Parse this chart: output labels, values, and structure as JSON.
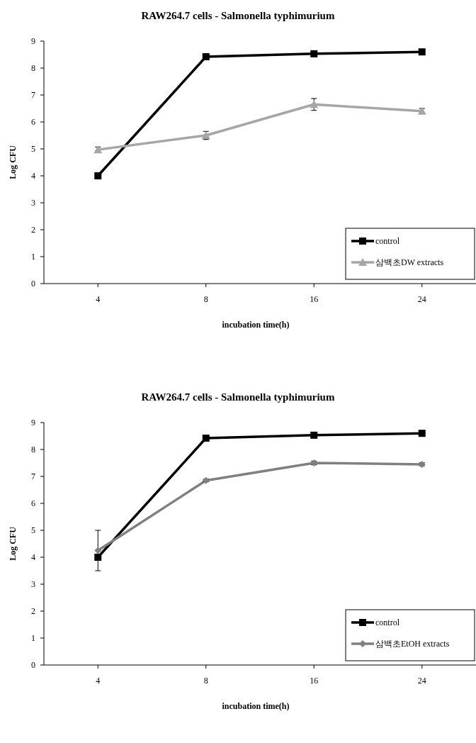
{
  "chart_data": [
    {
      "type": "line",
      "title": "RAW264.7 cells - Salmonella typhimurium",
      "xlabel": "incubation time(h)",
      "ylabel": "Log CFU",
      "categories": [
        "4",
        "8",
        "16",
        "24"
      ],
      "ylim": [
        0,
        9
      ],
      "yticks": [
        0,
        1,
        2,
        3,
        4,
        5,
        6,
        7,
        8,
        9
      ],
      "grid": false,
      "legend": "bottom right",
      "line_style": "solid",
      "series": [
        {
          "name": "control",
          "color": "#000000",
          "marker": "square",
          "values": [
            4.0,
            8.42,
            8.53,
            8.6
          ]
        },
        {
          "name": "삼백초DW extracts",
          "color": "#a6a6a6",
          "marker": "triangle",
          "values": [
            4.97,
            5.5,
            6.65,
            6.4
          ],
          "errors": [
            0.1,
            0.15,
            0.22,
            0.1
          ]
        }
      ]
    },
    {
      "type": "line",
      "title": "RAW264.7 cells - Salmonella typhimurium",
      "xlabel": "incubation time(h)",
      "ylabel": "Log CFU",
      "categories": [
        "4",
        "8",
        "16",
        "24"
      ],
      "ylim": [
        0,
        9
      ],
      "yticks": [
        0,
        1,
        2,
        3,
        4,
        5,
        6,
        7,
        8,
        9
      ],
      "grid": false,
      "legend": "bottom right",
      "line_style": "solid",
      "series": [
        {
          "name": "control",
          "color": "#000000",
          "marker": "square",
          "values": [
            4.0,
            8.42,
            8.53,
            8.6
          ]
        },
        {
          "name": "삼백초EtOH extracts",
          "color": "#808080",
          "marker": "diamond",
          "values": [
            4.25,
            6.85,
            7.5,
            7.45
          ],
          "errors": [
            0.75,
            0.05,
            0.07,
            0.06
          ]
        }
      ]
    }
  ]
}
